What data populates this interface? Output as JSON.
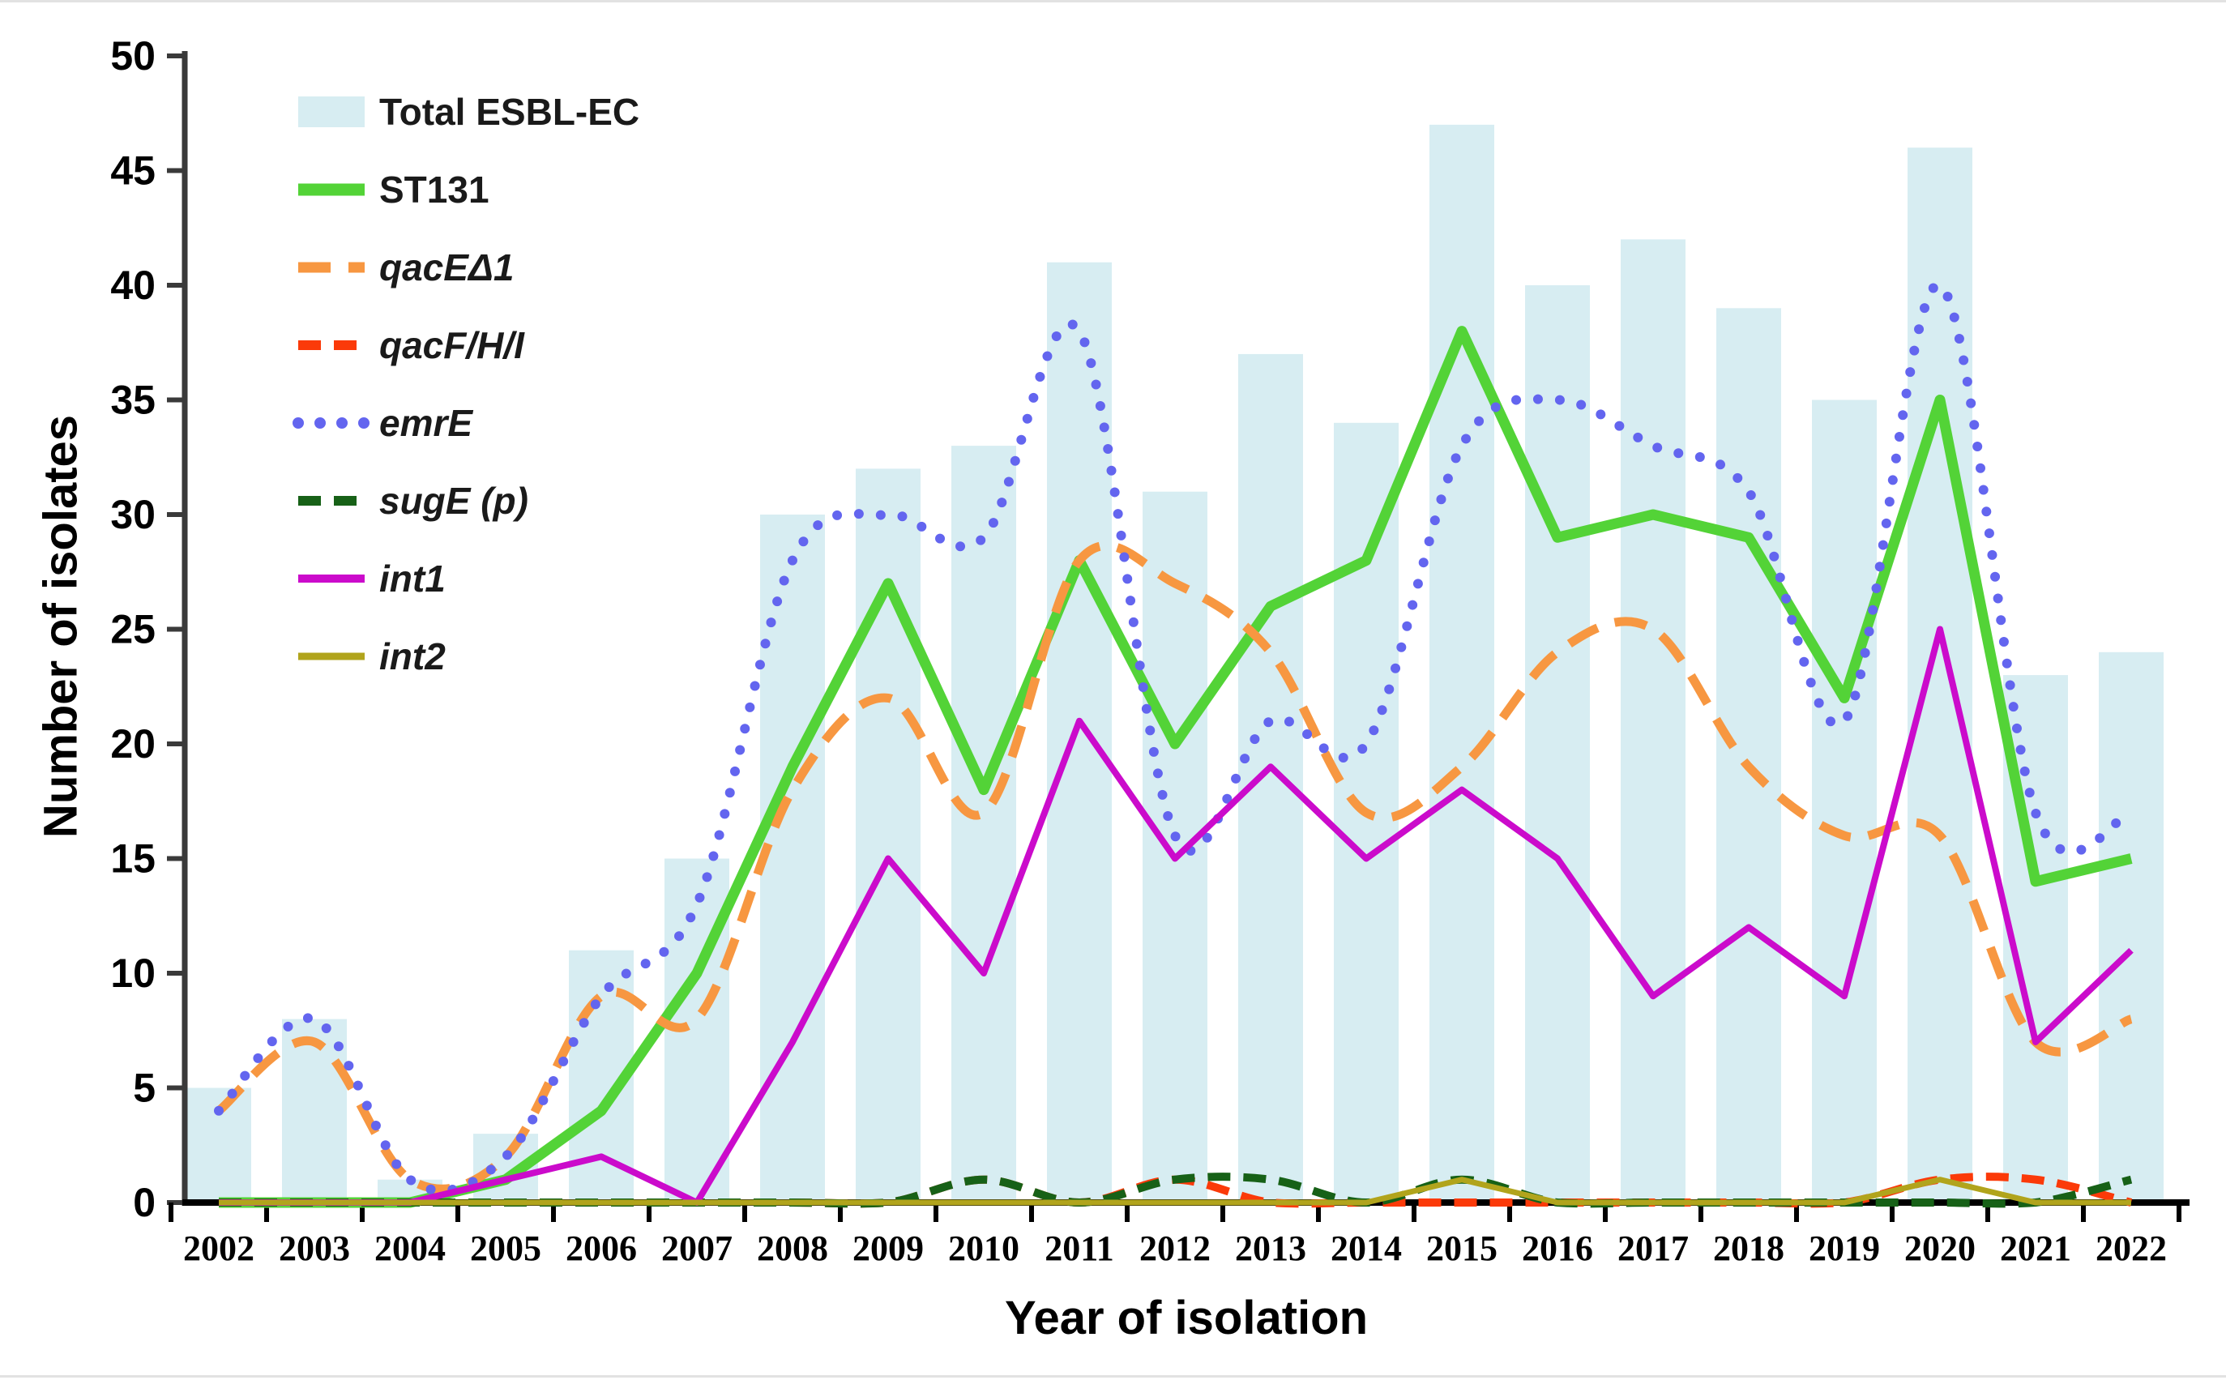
{
  "figure": {
    "y_axis_title": "Number of isolates",
    "x_axis_title": "Year of isolation"
  },
  "chart_data": {
    "type": "composite-bar-line",
    "title": "",
    "xlabel": "Year of isolation",
    "ylabel": "Number of isolates",
    "ylim": [
      0,
      50
    ],
    "y_tick_step": 5,
    "y_tick_labels": [
      "0",
      "5",
      "10",
      "15",
      "20",
      "25",
      "30",
      "35",
      "40",
      "45",
      "50"
    ],
    "grid": false,
    "legend_position": "top-left-inside",
    "categories": [
      2002,
      2003,
      2004,
      2005,
      2006,
      2007,
      2008,
      2009,
      2010,
      2011,
      2012,
      2013,
      2014,
      2015,
      2016,
      2017,
      2018,
      2019,
      2020,
      2021,
      2022
    ],
    "bar_series": {
      "name": "Total ESBL-EC",
      "color": "#d7edf2",
      "values": [
        5,
        8,
        1,
        3,
        11,
        15,
        30,
        32,
        33,
        41,
        31,
        37,
        34,
        47,
        40,
        42,
        39,
        35,
        46,
        23,
        24
      ]
    },
    "series": [
      {
        "name": "ST131",
        "color": "#53d337",
        "style": "solid",
        "width": 13,
        "smooth": false,
        "italic": false,
        "values": [
          0,
          0,
          0,
          1,
          4,
          10,
          19,
          27,
          18,
          28,
          20,
          26,
          28,
          38,
          29,
          30,
          29,
          22,
          35,
          14,
          15
        ]
      },
      {
        "name": "qacEΔ1",
        "color": "#f79741",
        "style": "dash",
        "dash": "40 22",
        "width": 11,
        "smooth": true,
        "italic": true,
        "values": [
          4,
          7,
          1,
          2,
          9,
          8,
          18,
          22,
          17,
          28,
          27,
          24,
          17,
          19,
          24,
          25,
          19,
          16,
          16,
          7,
          8
        ]
      },
      {
        "name": "qacF/H/I",
        "color": "#fb3a09",
        "style": "dash",
        "dash": "28 16",
        "width": 10,
        "smooth": true,
        "italic": true,
        "values": [
          0,
          0,
          0,
          0,
          0,
          0,
          0,
          0,
          1,
          0,
          1,
          0,
          0,
          0,
          0,
          0,
          0,
          0,
          1,
          1,
          0
        ]
      },
      {
        "name": "emrE",
        "color": "#6365ef",
        "style": "dot",
        "dash": "0 27",
        "width": 12,
        "smooth": true,
        "italic": true,
        "values": [
          4,
          8,
          1,
          2,
          9,
          13,
          28,
          30,
          29,
          38,
          16,
          21,
          20,
          33,
          35,
          33,
          31,
          21,
          40,
          17,
          17
        ]
      },
      {
        "name": "sugE (p)",
        "color": "#176117",
        "style": "dash",
        "dash": "28 16",
        "width": 10,
        "smooth": true,
        "italic": true,
        "values": [
          0,
          0,
          0,
          0,
          0,
          0,
          0,
          0,
          1,
          0,
          1,
          1,
          0,
          1,
          0,
          0,
          0,
          0,
          0,
          0,
          1
        ]
      },
      {
        "name": "int1",
        "color": "#cb0bcb",
        "style": "solid",
        "width": 8,
        "smooth": false,
        "italic": true,
        "values": [
          0,
          0,
          0,
          1,
          2,
          0,
          7,
          15,
          10,
          21,
          15,
          19,
          15,
          18,
          15,
          9,
          12,
          9,
          25,
          7,
          11
        ]
      },
      {
        "name": "int2",
        "color": "#b1a41c",
        "style": "solid",
        "width": 7,
        "smooth": false,
        "italic": true,
        "values": [
          0,
          0,
          0,
          0,
          0,
          0,
          0,
          0,
          0,
          0,
          0,
          0,
          0,
          1,
          0,
          0,
          0,
          0,
          1,
          0,
          0
        ]
      }
    ],
    "legend_order": [
      "Total ESBL-EC",
      "ST131",
      "qacEΔ1",
      "qacF/H/I",
      "emrE",
      "sugE (p)",
      "int1",
      "int2"
    ]
  }
}
